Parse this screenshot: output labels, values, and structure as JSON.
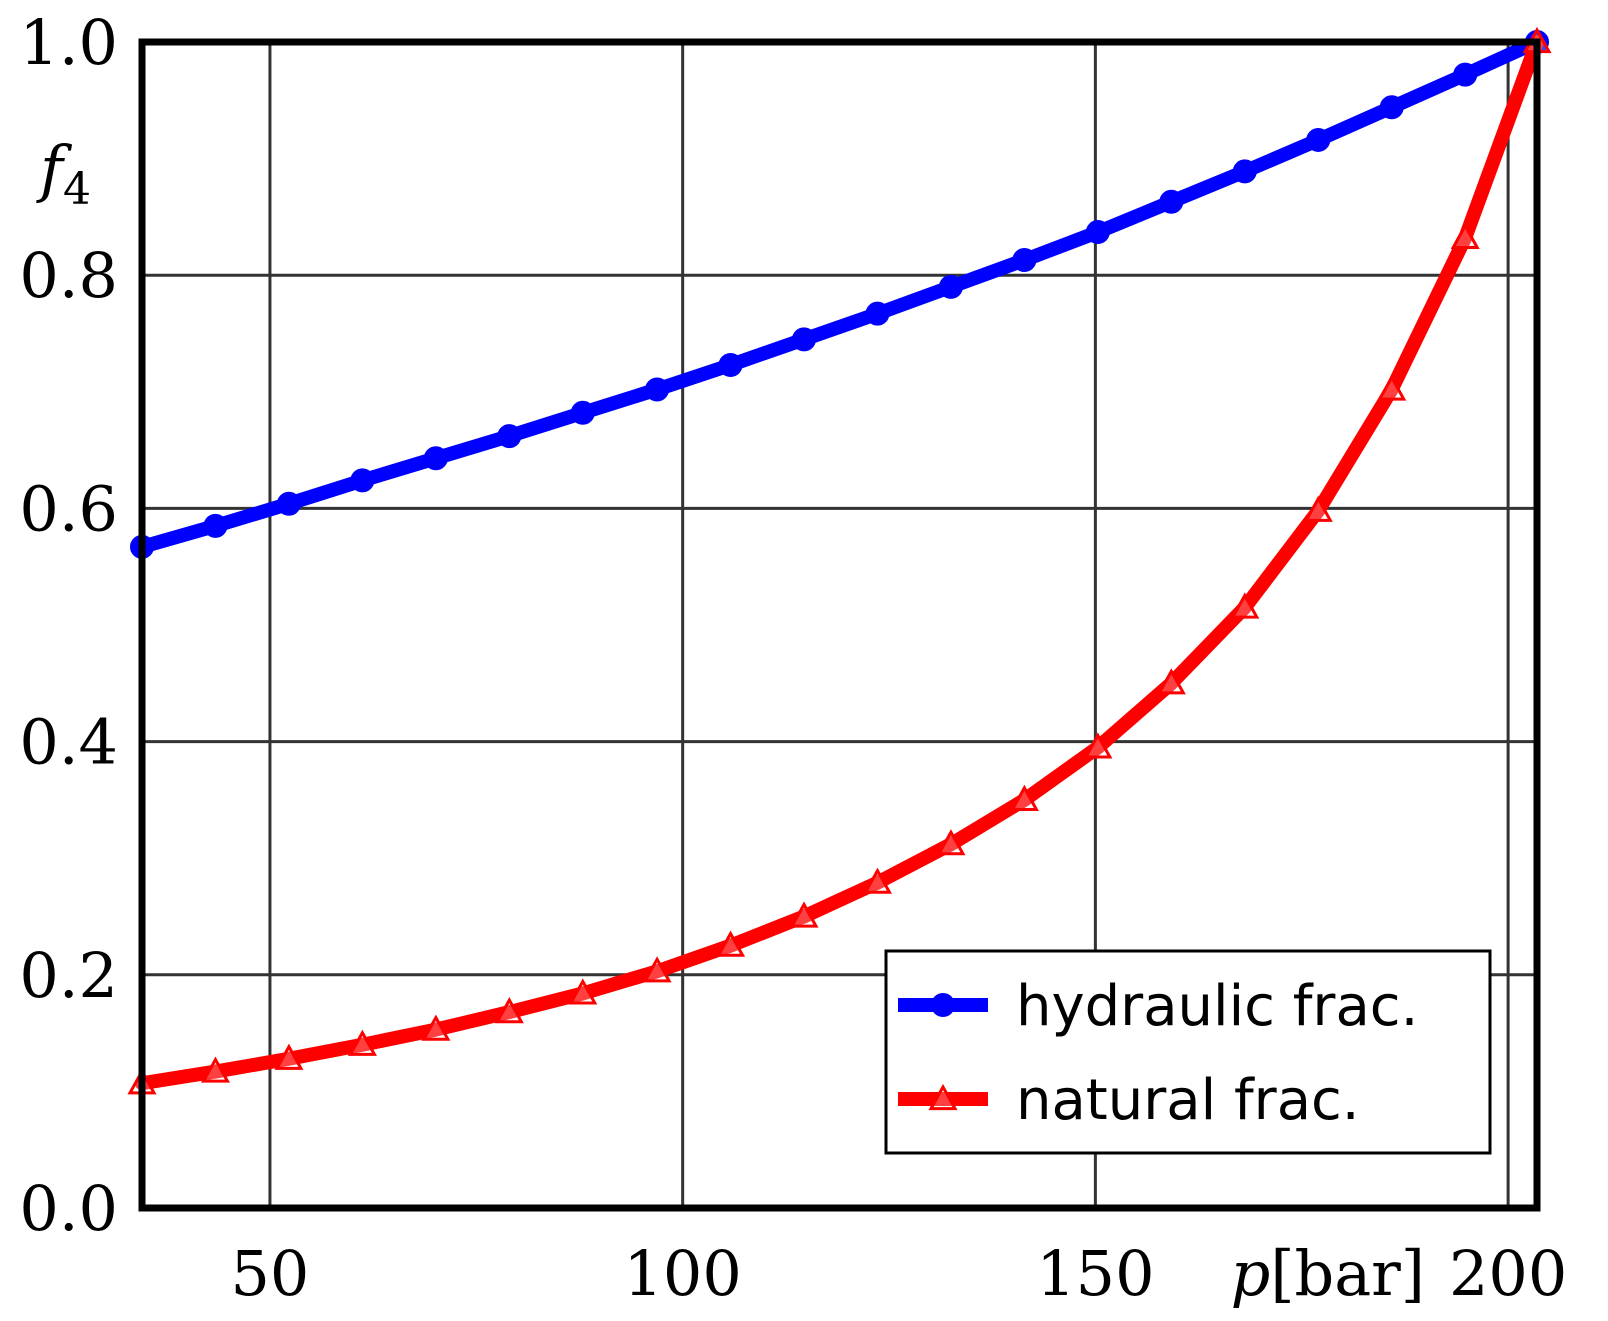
{
  "chart_data": {
    "type": "line",
    "xlabel": "p[bar]",
    "ylabel": "f4",
    "xlim": [
      34.5,
      203.5
    ],
    "ylim": [
      0.0,
      1.0
    ],
    "xticks": [
      50,
      100,
      150,
      200
    ],
    "yticks": [
      0.0,
      0.2,
      0.4,
      0.6,
      0.8,
      1.0
    ],
    "xtick_labels": [
      "50",
      "100",
      "150",
      "200"
    ],
    "ytick_labels": [
      "0.0",
      "0.2",
      "0.4",
      "0.6",
      "0.8",
      "1.0"
    ],
    "grid": true,
    "legend_position": "bottom-right",
    "series": [
      {
        "name": "hydraulic frac.",
        "color": "#0000ff",
        "marker": "circle",
        "x": [
          34.5,
          43.4,
          52.3,
          61.2,
          70.1,
          79.0,
          87.9,
          96.9,
          105.8,
          114.7,
          123.6,
          132.5,
          141.4,
          150.3,
          159.2,
          168.1,
          177.0,
          185.9,
          194.8,
          203.5
        ],
        "y": [
          0.567,
          0.585,
          0.604,
          0.624,
          0.643,
          0.662,
          0.682,
          0.702,
          0.723,
          0.745,
          0.767,
          0.79,
          0.813,
          0.837,
          0.863,
          0.889,
          0.916,
          0.944,
          0.972,
          1.0
        ]
      },
      {
        "name": "natural frac.",
        "color": "#ff0000",
        "marker": "triangle",
        "x": [
          34.5,
          43.4,
          52.3,
          61.2,
          70.1,
          79.0,
          87.9,
          96.9,
          105.8,
          114.7,
          123.6,
          132.5,
          141.4,
          150.3,
          159.2,
          168.1,
          177.0,
          185.9,
          194.8,
          203.5
        ],
        "y": [
          0.107,
          0.117,
          0.128,
          0.14,
          0.153,
          0.168,
          0.184,
          0.203,
          0.225,
          0.25,
          0.279,
          0.312,
          0.35,
          0.395,
          0.45,
          0.515,
          0.598,
          0.702,
          0.832,
          1.0
        ]
      }
    ]
  }
}
